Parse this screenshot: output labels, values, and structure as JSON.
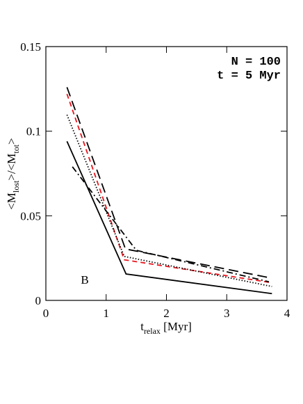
{
  "chart_data": {
    "type": "line",
    "xlabel": {
      "main": "t",
      "sub": "relax",
      "rest": " [Myr]"
    },
    "ylabel": [
      {
        "main": "<M",
        "sub": "lost"
      },
      {
        "main": ">/<M",
        "sub": "tot"
      },
      {
        "main": ">"
      }
    ],
    "annotations": [
      "N = 100",
      "t = 5 Myr",
      "B"
    ],
    "xlim": [
      0,
      4
    ],
    "xticks": [
      0,
      1,
      2,
      3,
      4
    ],
    "ylim": [
      0,
      0.15
    ],
    "yticks": [
      0,
      0.05,
      0.1,
      0.15
    ],
    "series": [
      {
        "color": "#000000",
        "style": "solid",
        "x": [
          0.35,
          1.33,
          3.75
        ],
        "values": [
          0.094,
          0.0156,
          0.004
        ]
      },
      {
        "color": "#000000",
        "style": "longdash",
        "x": [
          0.35,
          1.32,
          3.68
        ],
        "values": [
          0.126,
          0.0304,
          0.0136
        ]
      },
      {
        "color": "#e8141c",
        "style": "dash",
        "x": [
          0.35,
          1.3,
          3.7
        ],
        "values": [
          0.122,
          0.024,
          0.0107
        ]
      },
      {
        "color": "#000000",
        "style": "dot",
        "x": [
          0.35,
          1.3,
          3.75
        ],
        "values": [
          0.1097,
          0.026,
          0.0082
        ]
      },
      {
        "color": "#000000",
        "style": "dashdot",
        "x": [
          0.44,
          1.5,
          3.7
        ],
        "values": [
          0.079,
          0.0296,
          0.011
        ]
      }
    ]
  }
}
